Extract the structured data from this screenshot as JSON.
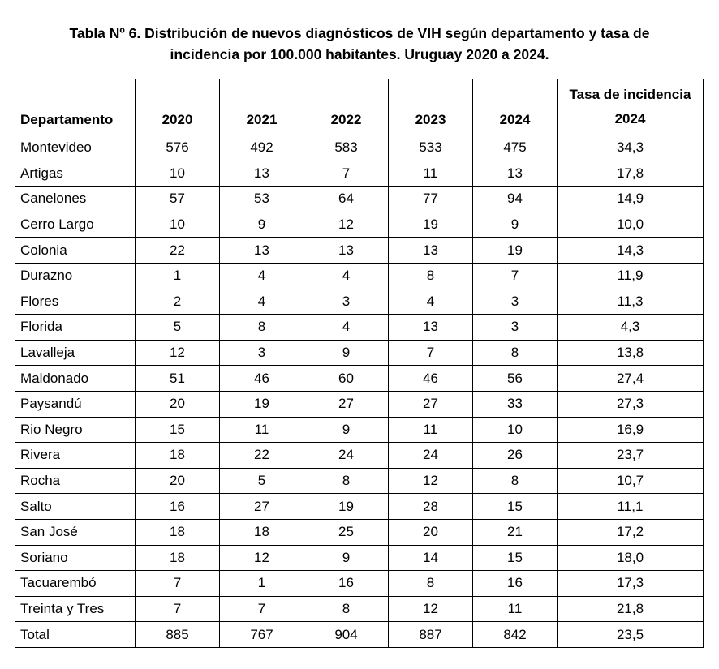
{
  "caption": {
    "line1": "Tabla Nº 6. Distribución de nuevos diagnósticos de VIH según departamento y tasa de",
    "line2": "incidencia por 100.000 habitantes. Uruguay 2020 a 2024."
  },
  "table": {
    "headers": {
      "department": "Departamento",
      "y2020": "2020",
      "y2021": "2021",
      "y2022": "2022",
      "y2023": "2023",
      "y2024": "2024",
      "rate_line1": "Tasa de incidencia",
      "rate_line2": "2024"
    },
    "rows": [
      {
        "dept": "Montevideo",
        "y2020": "576",
        "y2021": "492",
        "y2022": "583",
        "y2023": "533",
        "y2024": "475",
        "rate": "34,3"
      },
      {
        "dept": "Artigas",
        "y2020": "10",
        "y2021": "13",
        "y2022": "7",
        "y2023": "11",
        "y2024": "13",
        "rate": "17,8"
      },
      {
        "dept": "Canelones",
        "y2020": "57",
        "y2021": "53",
        "y2022": "64",
        "y2023": "77",
        "y2024": "94",
        "rate": "14,9"
      },
      {
        "dept": "Cerro Largo",
        "y2020": "10",
        "y2021": "9",
        "y2022": "12",
        "y2023": "19",
        "y2024": "9",
        "rate": "10,0"
      },
      {
        "dept": "Colonia",
        "y2020": "22",
        "y2021": "13",
        "y2022": "13",
        "y2023": "13",
        "y2024": "19",
        "rate": "14,3"
      },
      {
        "dept": "Durazno",
        "y2020": "1",
        "y2021": "4",
        "y2022": "4",
        "y2023": "8",
        "y2024": "7",
        "rate": "11,9"
      },
      {
        "dept": "Flores",
        "y2020": "2",
        "y2021": "4",
        "y2022": "3",
        "y2023": "4",
        "y2024": "3",
        "rate": "11,3"
      },
      {
        "dept": "Florida",
        "y2020": "5",
        "y2021": "8",
        "y2022": "4",
        "y2023": "13",
        "y2024": "3",
        "rate": "4,3"
      },
      {
        "dept": "Lavalleja",
        "y2020": "12",
        "y2021": "3",
        "y2022": "9",
        "y2023": "7",
        "y2024": "8",
        "rate": "13,8"
      },
      {
        "dept": "Maldonado",
        "y2020": "51",
        "y2021": "46",
        "y2022": "60",
        "y2023": "46",
        "y2024": "56",
        "rate": "27,4"
      },
      {
        "dept": "Paysandú",
        "y2020": "20",
        "y2021": "19",
        "y2022": "27",
        "y2023": "27",
        "y2024": "33",
        "rate": "27,3"
      },
      {
        "dept": "Rio Negro",
        "y2020": "15",
        "y2021": "11",
        "y2022": "9",
        "y2023": "11",
        "y2024": "10",
        "rate": "16,9"
      },
      {
        "dept": "Rivera",
        "y2020": "18",
        "y2021": "22",
        "y2022": "24",
        "y2023": "24",
        "y2024": "26",
        "rate": "23,7"
      },
      {
        "dept": "Rocha",
        "y2020": "20",
        "y2021": "5",
        "y2022": "8",
        "y2023": "12",
        "y2024": "8",
        "rate": "10,7"
      },
      {
        "dept": "Salto",
        "y2020": "16",
        "y2021": "27",
        "y2022": "19",
        "y2023": "28",
        "y2024": "15",
        "rate": "11,1"
      },
      {
        "dept": "San José",
        "y2020": "18",
        "y2021": "18",
        "y2022": "25",
        "y2023": "20",
        "y2024": "21",
        "rate": "17,2"
      },
      {
        "dept": "Soriano",
        "y2020": "18",
        "y2021": "12",
        "y2022": "9",
        "y2023": "14",
        "y2024": "15",
        "rate": "18,0"
      },
      {
        "dept": "Tacuarembó",
        "y2020": "7",
        "y2021": "1",
        "y2022": "16",
        "y2023": "8",
        "y2024": "16",
        "rate": "17,3"
      },
      {
        "dept": "Treinta y Tres",
        "y2020": "7",
        "y2021": "7",
        "y2022": "8",
        "y2023": "12",
        "y2024": "11",
        "rate": "21,8"
      },
      {
        "dept": "Total",
        "y2020": "885",
        "y2021": "767",
        "y2022": "904",
        "y2023": "887",
        "y2024": "842",
        "rate": "23,5"
      }
    ]
  }
}
